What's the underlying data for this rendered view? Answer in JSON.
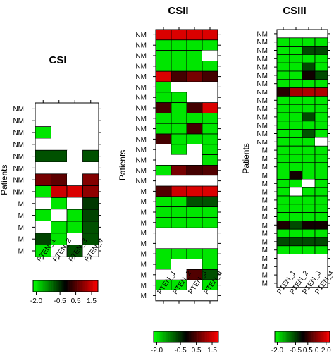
{
  "palette": {
    "green": "#00ff00",
    "black": "#000000",
    "red": "#ff0000",
    "missing": "#ffffff",
    "grid": "#000000"
  },
  "chart_data": [
    {
      "type": "heatmap",
      "title": "CSI",
      "xlabel": "",
      "ylabel": "Patients",
      "x": [
        "PTEN_1",
        "PTEN_2",
        "PTEN_3",
        "PTEN_4"
      ],
      "y": [
        "NM",
        "NM",
        "NM",
        "NM",
        "NM",
        "NM",
        "NM",
        "NM",
        "M",
        "M",
        "M",
        "M",
        "M"
      ],
      "values": [
        [
          null,
          null,
          null,
          null
        ],
        [
          null,
          null,
          null,
          null
        ],
        [
          -2.0,
          null,
          null,
          null
        ],
        [
          null,
          null,
          null,
          null
        ],
        [
          -0.8,
          -0.8,
          null,
          -0.8
        ],
        [
          null,
          null,
          null,
          null
        ],
        [
          0.8,
          0.6,
          null,
          0.9
        ],
        [
          -2.0,
          1.5,
          1.6,
          1.0
        ],
        [
          null,
          -2.0,
          null,
          -0.6
        ],
        [
          -2.0,
          null,
          -2.0,
          -0.7
        ],
        [
          null,
          -2.0,
          -2.0,
          -0.8
        ],
        [
          -0.7,
          -2.0,
          null,
          -0.8
        ],
        [
          -2.0,
          null,
          -0.8,
          null
        ]
      ],
      "colorbar": {
        "ticks": [
          "-2.0",
          "-0.5",
          "0.5",
          "1.5"
        ],
        "range": [
          -2.2,
          1.9
        ]
      }
    },
    {
      "type": "heatmap",
      "title": "CSII",
      "xlabel": "",
      "ylabel": "Patients",
      "x": [
        "PTEN_1",
        "PTEN_2",
        "PTEN_3",
        "PTEN_4"
      ],
      "y": [
        "NM",
        "NM",
        "NM",
        "NM",
        "NM",
        "NM",
        "NM",
        "NM",
        "NM",
        "NM",
        "NM",
        "NM",
        "NM",
        "NM",
        "NM",
        "M",
        "M",
        "M",
        "M",
        "M",
        "M",
        "M",
        "M",
        "M",
        "M",
        "M"
      ],
      "values": [
        [
          1.6,
          1.6,
          1.6,
          1.6
        ],
        [
          -2.0,
          -2.0,
          -2.0,
          -2.0
        ],
        [
          -2.0,
          -2.0,
          -2.0,
          null
        ],
        [
          -2.0,
          -2.0,
          -2.0,
          -2.0
        ],
        [
          1.6,
          0.4,
          0.8,
          0.4
        ],
        [
          -2.0,
          null,
          null,
          null
        ],
        [
          -2.0,
          -2.0,
          null,
          null
        ],
        [
          0.4,
          -2.0,
          0.4,
          1.6
        ],
        [
          -2.0,
          -2.0,
          -2.0,
          -2.0
        ],
        [
          -2.0,
          -2.0,
          0.4,
          -2.0
        ],
        [
          0.4,
          -2.0,
          -2.0,
          -2.0
        ],
        [
          null,
          -2.0,
          null,
          -2.0
        ],
        [
          null,
          null,
          null,
          -2.0
        ],
        [
          -2.0,
          0.8,
          0.4,
          0.5
        ],
        [
          null,
          null,
          null,
          null
        ],
        [
          0.5,
          1.5,
          1.6,
          1.6
        ],
        [
          -2.0,
          -2.0,
          -0.8,
          -0.8
        ],
        [
          -2.0,
          -2.0,
          -2.0,
          -2.0
        ],
        [
          -2.0,
          -2.0,
          -2.0,
          -2.0
        ],
        [
          null,
          null,
          null,
          null
        ],
        [
          null,
          null,
          null,
          null
        ],
        [
          -2.0,
          -2.0,
          -2.0,
          -2.0
        ],
        [
          -2.0,
          null,
          null,
          -2.0
        ],
        [
          null,
          null,
          0.5,
          -0.8
        ],
        [
          -2.0,
          -2.0,
          null,
          -2.0
        ],
        [
          null,
          null,
          null,
          null
        ]
      ],
      "colorbar": {
        "ticks": [
          "-2.0",
          "-0.5",
          "0.5",
          "1.5"
        ],
        "range": [
          -2.2,
          1.9
        ]
      }
    },
    {
      "type": "heatmap",
      "title": "CSIII",
      "xlabel": "",
      "ylabel": "Patients",
      "x": [
        "PTEN_1",
        "PTEN_2",
        "PTEN_3",
        "PTEN_4"
      ],
      "y": [
        "NM",
        "NM",
        "NM",
        "NM",
        "NM",
        "NM",
        "NM",
        "NM",
        "NM",
        "NM",
        "NM",
        "NM",
        "NM",
        "NM",
        "M",
        "M",
        "M",
        "M",
        "M",
        "M",
        "M",
        "M",
        "M",
        "M",
        "M",
        "M",
        "M",
        "M",
        "M",
        "M",
        "M"
      ],
      "values": [
        [
          null,
          null,
          null,
          null
        ],
        [
          -2.0,
          -2.0,
          -2.0,
          -2.0
        ],
        [
          -2.0,
          -2.0,
          -0.6,
          -0.6
        ],
        [
          -2.0,
          -2.0,
          -2.0,
          -2.0
        ],
        [
          -2.0,
          -2.0,
          -0.6,
          -2.0
        ],
        [
          -2.0,
          -2.0,
          0.2,
          -0.6
        ],
        [
          -2.0,
          -2.0,
          -2.0,
          -2.0
        ],
        [
          0.4,
          1.5,
          1.6,
          1.6
        ],
        [
          -2.0,
          -2.0,
          -2.0,
          -2.0
        ],
        [
          -2.0,
          -2.0,
          -2.0,
          -2.0
        ],
        [
          -2.0,
          -2.0,
          -0.6,
          -2.0
        ],
        [
          -2.0,
          -2.0,
          -2.0,
          -2.0
        ],
        [
          -2.0,
          -2.0,
          -0.7,
          -2.0
        ],
        [
          -2.0,
          -2.0,
          -2.0,
          null
        ],
        [
          -2.0,
          -2.0,
          -2.0,
          -2.0
        ],
        [
          -2.0,
          -2.0,
          -2.0,
          -2.0
        ],
        [
          -2.0,
          -2.0,
          -2.0,
          -2.0
        ],
        [
          -2.0,
          0.2,
          -2.0,
          -2.0
        ],
        [
          -2.0,
          -2.0,
          null,
          -2.0
        ],
        [
          -2.0,
          null,
          -2.0,
          -2.0
        ],
        [
          -2.0,
          -2.0,
          -2.0,
          -2.0
        ],
        [
          -2.0,
          -2.0,
          -2.0,
          -2.0
        ],
        [
          -2.0,
          -2.0,
          -2.0,
          -2.0
        ],
        [
          0.3,
          -0.6,
          0.2,
          0.2
        ],
        [
          -2.0,
          -2.0,
          -2.0,
          -2.0
        ],
        [
          -0.6,
          -0.6,
          -0.6,
          -0.6
        ],
        [
          -2.0,
          -2.0,
          -2.0,
          -2.0
        ],
        [
          null,
          null,
          null,
          null
        ],
        [
          null,
          null,
          null,
          null
        ],
        [
          null,
          null,
          null,
          null
        ],
        [
          null,
          null,
          null,
          null
        ]
      ],
      "colorbar": {
        "ticks": [
          "-2.0",
          "-0.5",
          "0.5",
          "1.0",
          "2.0"
        ],
        "range": [
          -2.2,
          2.3
        ]
      }
    }
  ]
}
